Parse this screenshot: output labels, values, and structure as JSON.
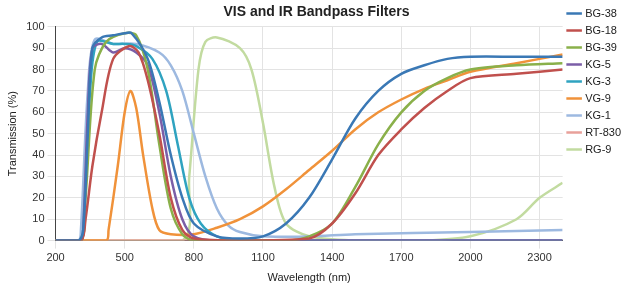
{
  "chart_data": {
    "type": "line",
    "title": "VIS and IR Bandpass Filters",
    "x_label": "Wavelength (nm)",
    "y_label": "Transmission (%)",
    "xlim": [
      200,
      2400
    ],
    "xticks": [
      200,
      500,
      800,
      1100,
      1400,
      1700,
      2000,
      2300
    ],
    "ylim": [
      0,
      100
    ],
    "yticks": [
      0,
      10,
      20,
      30,
      40,
      50,
      60,
      70,
      80,
      90,
      100
    ],
    "grid": true,
    "legend": "right",
    "series": [
      {
        "name": "BG-38",
        "color": "#3a78b5",
        "x": [
          200,
          300,
          320,
          340,
          360,
          400,
          450,
          500,
          530,
          600,
          650,
          700,
          750,
          800,
          900,
          1000,
          1100,
          1200,
          1300,
          1400,
          1500,
          1600,
          1700,
          1800,
          1900,
          2000,
          2200,
          2400
        ],
        "values": [
          0,
          0,
          5,
          50,
          90,
          95,
          96,
          97,
          97,
          85,
          65,
          40,
          20,
          8,
          2,
          1,
          2,
          8,
          20,
          38,
          57,
          70,
          78,
          82,
          85,
          86,
          86,
          86
        ]
      },
      {
        "name": "BG-18",
        "color": "#c0504d",
        "x": [
          200,
          310,
          330,
          360,
          400,
          450,
          520,
          560,
          600,
          650,
          700,
          750,
          800,
          1000,
          1300,
          1400,
          1500,
          1600,
          1700,
          1800,
          1900,
          2000,
          2200,
          2400
        ],
        "values": [
          0,
          0,
          10,
          35,
          60,
          85,
          91,
          88,
          75,
          50,
          20,
          5,
          1,
          0,
          1,
          8,
          22,
          40,
          52,
          62,
          70,
          76,
          78,
          80
        ]
      },
      {
        "name": "BG-39",
        "color": "#8ab04a",
        "x": [
          200,
          310,
          330,
          370,
          420,
          500,
          550,
          600,
          650,
          700,
          750,
          800,
          1200,
          1300,
          1400,
          1500,
          1600,
          1700,
          1800,
          1900,
          2000,
          2200,
          2400
        ],
        "values": [
          0,
          0,
          20,
          80,
          93,
          97,
          96,
          80,
          45,
          15,
          3,
          0,
          0,
          2,
          8,
          25,
          45,
          60,
          70,
          76,
          80,
          82,
          83
        ]
      },
      {
        "name": "KG-5",
        "color": "#7b5ea7",
        "x": [
          200,
          310,
          320,
          340,
          360,
          400,
          450,
          500,
          550,
          600,
          650,
          700,
          750,
          800,
          900,
          2400
        ],
        "values": [
          0,
          0,
          5,
          60,
          90,
          92,
          88,
          90,
          88,
          82,
          60,
          30,
          10,
          2,
          0,
          0
        ]
      },
      {
        "name": "KG-3",
        "color": "#2fa3c0",
        "x": [
          200,
          310,
          320,
          350,
          380,
          450,
          500,
          550,
          620,
          680,
          730,
          780,
          830,
          900,
          1000,
          2400
        ],
        "values": [
          0,
          0,
          5,
          70,
          93,
          92,
          92,
          91,
          85,
          70,
          45,
          20,
          8,
          2,
          0,
          0
        ]
      },
      {
        "name": "VG-9",
        "color": "#f0923a",
        "x": [
          200,
          420,
          430,
          470,
          500,
          525,
          550,
          580,
          620,
          650,
          700,
          800,
          900,
          1000,
          1100,
          1200,
          1300,
          1400,
          1500,
          1600,
          1700,
          1800,
          1900,
          2000,
          2200,
          2400
        ],
        "values": [
          0,
          0,
          5,
          35,
          60,
          70,
          62,
          40,
          15,
          5,
          3,
          3,
          6,
          10,
          16,
          24,
          33,
          42,
          52,
          60,
          66,
          71,
          75,
          79,
          83,
          87
        ]
      },
      {
        "name": "KG-1",
        "color": "#9db9e0",
        "x": [
          200,
          300,
          310,
          340,
          370,
          450,
          550,
          650,
          700,
          750,
          800,
          850,
          900,
          950,
          1000,
          1100,
          1300,
          1500,
          2000,
          2400
        ],
        "values": [
          0,
          0,
          5,
          70,
          94,
          92,
          92,
          88,
          82,
          70,
          50,
          30,
          15,
          7,
          4,
          2,
          2,
          3,
          4,
          5
        ]
      },
      {
        "name": "RT-830",
        "color": "#e8a09a",
        "x": [
          200,
          800,
          1400,
          2000,
          2400
        ],
        "values": [
          0,
          0,
          0,
          0,
          0
        ]
      },
      {
        "name": "RG-9",
        "color": "#c2dba0",
        "x": [
          200,
          750,
          780,
          820,
          850,
          900,
          1000,
          1050,
          1100,
          1150,
          1200,
          1300,
          1500,
          1800,
          2000,
          2200,
          2300,
          2400
        ],
        "values": [
          0,
          0,
          30,
          80,
          93,
          95,
          90,
          80,
          55,
          25,
          8,
          2,
          0,
          0,
          2,
          10,
          20,
          27
        ]
      }
    ]
  }
}
